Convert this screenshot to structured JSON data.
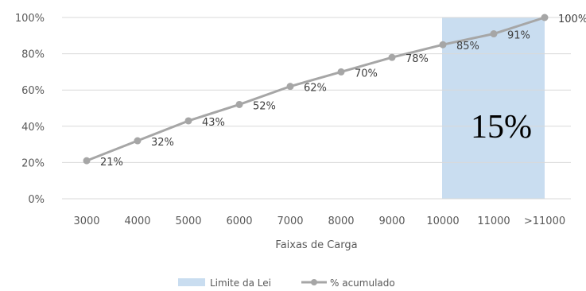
{
  "chart_data": {
    "type": "line",
    "title": "",
    "xlabel": "Faixas de Carga",
    "ylabel": "",
    "categories": [
      "3000",
      "4000",
      "5000",
      "6000",
      "7000",
      "8000",
      "9000",
      "10000",
      "11000",
      ">11000"
    ],
    "series": [
      {
        "name": "% acumulado",
        "values": [
          21,
          32,
          43,
          52,
          62,
          70,
          78,
          85,
          91,
          100
        ],
        "data_labels": [
          "21%",
          "32%",
          "43%",
          "52%",
          "62%",
          "70%",
          "78%",
          "85%",
          "91%",
          "100%"
        ],
        "color": "#a6a6a6"
      }
    ],
    "highlight_band": {
      "name": "Limite da Lei",
      "from_category": "10000",
      "to_category": ">11000",
      "color": "#c9ddf0",
      "annotation": "15%"
    },
    "yticks": [
      "0%",
      "20%",
      "40%",
      "60%",
      "80%",
      "100%"
    ],
    "ylim": [
      0,
      100
    ],
    "grid": true,
    "legend": {
      "position": "bottom",
      "entries": [
        "Limite da Lei",
        "% acumulado"
      ]
    },
    "colors": {
      "gridline": "#d9d9d9",
      "line": "#a6a6a6",
      "band": "#c9ddf0",
      "text": "#595959"
    }
  }
}
